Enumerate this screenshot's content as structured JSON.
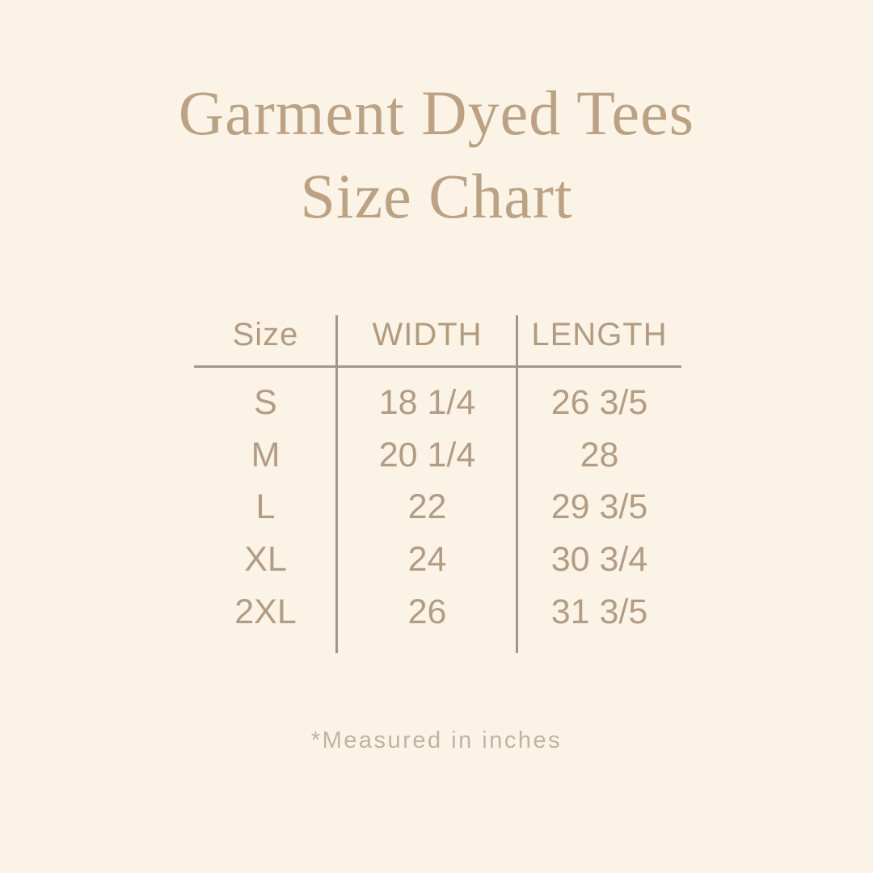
{
  "title": {
    "line1": "Garment Dyed Tees",
    "line2": "Size Chart"
  },
  "table": {
    "headers": {
      "size": "Size",
      "width": "WIDTH",
      "length": "LENGTH"
    },
    "rows": [
      {
        "size": "S",
        "width": "18 1/4",
        "length": "26 3/5"
      },
      {
        "size": "M",
        "width": "20 1/4",
        "length": "28"
      },
      {
        "size": "L",
        "width": "22",
        "length": "29 3/5"
      },
      {
        "size": "XL",
        "width": "24",
        "length": "30 3/4"
      },
      {
        "size": "2XL",
        "width": "26",
        "length": "31 3/5"
      }
    ]
  },
  "footnote": {
    "text": "*Measured in inches"
  },
  "colors": {
    "background": "#FBF4E6",
    "title_text": "#BCA284",
    "table_text": "#B39C84",
    "rule": "#A49689",
    "footnote_text": "#C1B2A1"
  },
  "chart_data": {
    "type": "table",
    "title": "Garment Dyed Tees Size Chart",
    "columns": [
      "Size",
      "WIDTH",
      "LENGTH"
    ],
    "rows": [
      [
        "S",
        "18 1/4",
        "26 3/5"
      ],
      [
        "M",
        "20 1/4",
        "28"
      ],
      [
        "L",
        "22",
        "29 3/5"
      ],
      [
        "XL",
        "24",
        "30 3/4"
      ],
      [
        "2XL",
        "26",
        "31 3/5"
      ]
    ],
    "footnote": "*Measured in inches",
    "units": "inches"
  }
}
